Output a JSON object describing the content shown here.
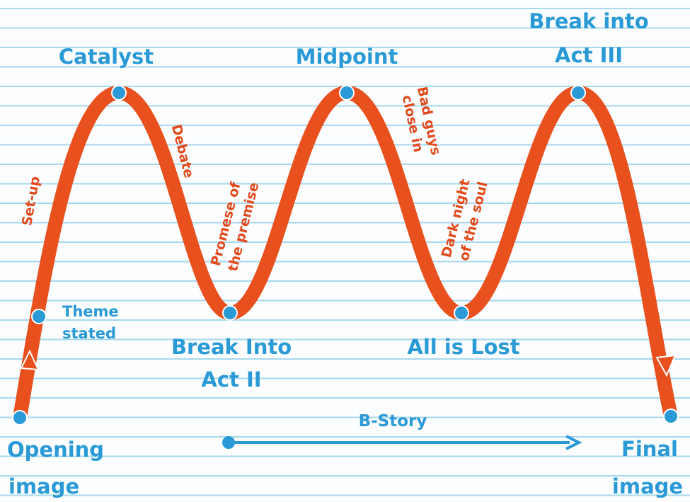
{
  "nodes": [
    {
      "label": [
        "Opening",
        "image"
      ]
    },
    {
      "label": [
        "Theme",
        "stated"
      ]
    },
    {
      "label": [
        "Catalyst"
      ]
    },
    {
      "label": [
        "Break Into",
        "Act II"
      ]
    },
    {
      "label": [
        "Midpoint"
      ]
    },
    {
      "label": [
        "All is Lost"
      ]
    },
    {
      "label": [
        "Break into",
        "Act III"
      ]
    },
    {
      "label": [
        "Final",
        "image"
      ]
    }
  ],
  "beats": [
    {
      "label": [
        "Set-up"
      ]
    },
    {
      "label": [
        "Debate"
      ]
    },
    {
      "label": [
        "Promese of",
        "the premise"
      ]
    },
    {
      "label": [
        "Bad guys",
        "close in"
      ]
    },
    {
      "label": [
        "Dark night",
        "of the soul"
      ]
    }
  ],
  "b_story": {
    "label": "B-Story"
  }
}
